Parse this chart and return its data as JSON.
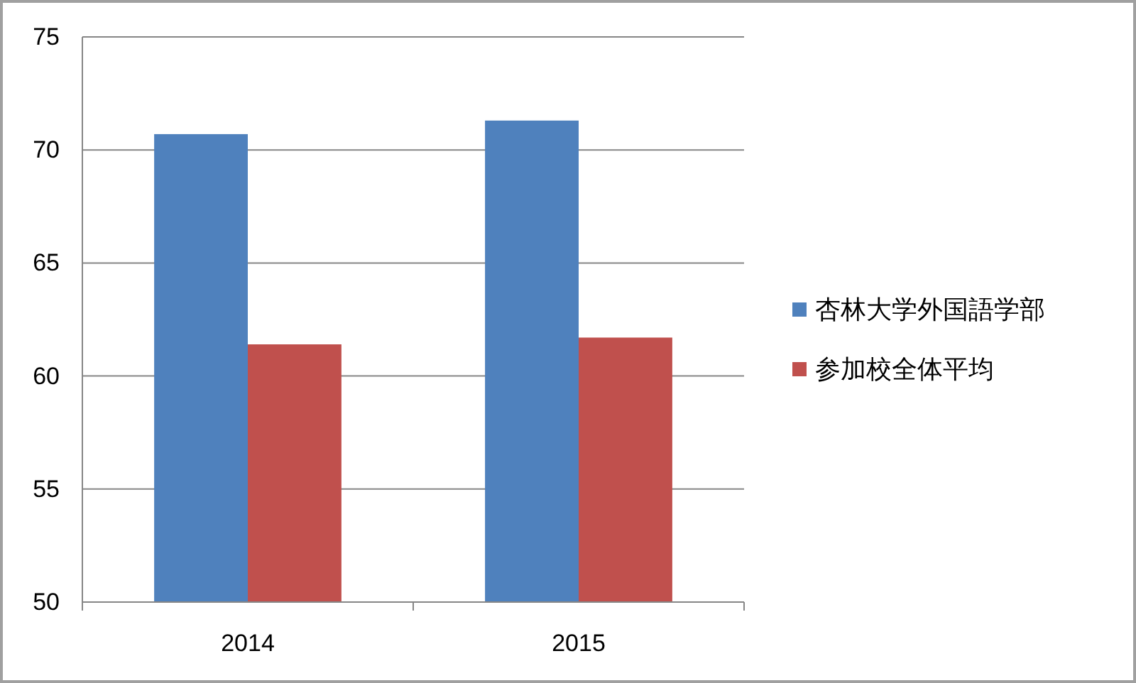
{
  "chart_data": {
    "type": "bar",
    "categories": [
      "2014",
      "2015"
    ],
    "series": [
      {
        "name": "杏林大学外国語学部",
        "color": "#4f81bd",
        "values": [
          70.7,
          71.3
        ]
      },
      {
        "name": "参加校全体平均",
        "color": "#c0504d",
        "values": [
          61.4,
          61.7
        ]
      }
    ],
    "ylim": [
      50,
      75
    ],
    "yticks": [
      50,
      55,
      60,
      65,
      70,
      75
    ],
    "grid": "y",
    "legend": "right"
  }
}
